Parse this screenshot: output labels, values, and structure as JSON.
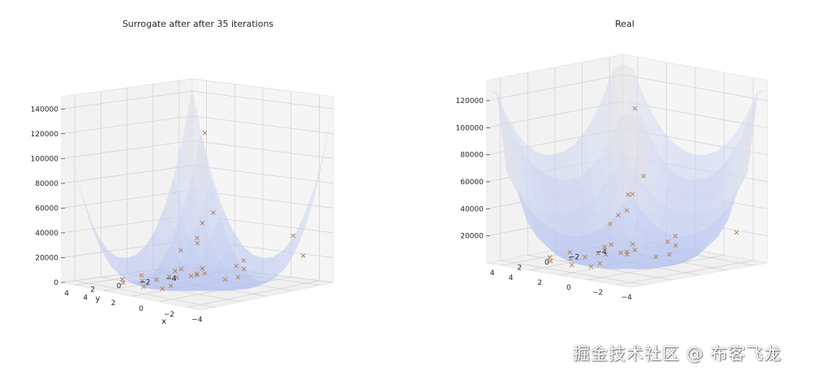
{
  "watermark": "掘金技术社区 @ 布客飞龙",
  "chart_data": [
    {
      "type": "surface3d",
      "title": "Surrogate after after 35 iterations",
      "xlabel": "x",
      "ylabel": "y",
      "zlabel": "",
      "xlim": [
        -5,
        5
      ],
      "ylim": [
        -5,
        5
      ],
      "zlim": [
        0,
        150000
      ],
      "x_ticks": [
        "−4",
        "−2",
        "0",
        "2",
        "4"
      ],
      "y_ticks": [
        "−4",
        "−2",
        "0",
        "2",
        "4"
      ],
      "z_ticks": [
        "0",
        "20000",
        "40000",
        "60000",
        "80000",
        "100000",
        "120000",
        "140000"
      ],
      "grid": true,
      "colormap": [
        "#b0bff0",
        "#d4dbf0",
        "#e6e0dc"
      ],
      "marker_color": "#b5835a",
      "samples": [
        {
          "x": -4.5,
          "y": 4.2,
          "z": 140000
        },
        {
          "x": 3.9,
          "y": -4.2,
          "z": 20000
        },
        {
          "x": -3.5,
          "y": 2.5,
          "z": 70000
        },
        {
          "x": -3.2,
          "y": 3.0,
          "z": 62000
        },
        {
          "x": -3.0,
          "y": 3.2,
          "z": 50000
        },
        {
          "x": -2.4,
          "y": 3.8,
          "z": 40000
        },
        {
          "x": -2.8,
          "y": -4.3,
          "z": 36000
        },
        {
          "x": -3.8,
          "y": -4.0,
          "z": 22000
        },
        {
          "x": -1.0,
          "y": 0.5,
          "z": 12000
        },
        {
          "x": -0.5,
          "y": 1.0,
          "z": 10000
        },
        {
          "x": 0.0,
          "y": 0.0,
          "z": 9000
        },
        {
          "x": 0.5,
          "y": -0.5,
          "z": 6000
        },
        {
          "x": 1.0,
          "y": 0.5,
          "z": 5000
        },
        {
          "x": 1.5,
          "y": 1.5,
          "z": 4000
        },
        {
          "x": 2.0,
          "y": 0.0,
          "z": 3000
        },
        {
          "x": 2.5,
          "y": -1.0,
          "z": 5000
        },
        {
          "x": -1.5,
          "y": -1.5,
          "z": 6000
        },
        {
          "x": -2.0,
          "y": 0.0,
          "z": 8000
        },
        {
          "x": 1.0,
          "y": 3.0,
          "z": 2000
        },
        {
          "x": 2.0,
          "y": 3.5,
          "z": 4000
        },
        {
          "x": 3.0,
          "y": 2.5,
          "z": 3000
        },
        {
          "x": -0.5,
          "y": -3.0,
          "z": 15000
        },
        {
          "x": -1.0,
          "y": -2.5,
          "z": 10000
        },
        {
          "x": 0.5,
          "y": -3.5,
          "z": 8000
        },
        {
          "x": 1.5,
          "y": -2.0,
          "z": 7000
        },
        {
          "x": 2.5,
          "y": 1.5,
          "z": 1000
        },
        {
          "x": 3.5,
          "y": 0.5,
          "z": 2000
        },
        {
          "x": 3.0,
          "y": -2.0,
          "z": 4000
        },
        {
          "x": 0.0,
          "y": 2.0,
          "z": 3000
        },
        {
          "x": -0.8,
          "y": 3.5,
          "z": 5000
        }
      ]
    },
    {
      "type": "surface3d",
      "title": "Real",
      "xlabel": "",
      "ylabel": "",
      "zlabel": "",
      "xlim": [
        -5,
        5
      ],
      "ylim": [
        -5,
        5
      ],
      "zlim": [
        0,
        135000
      ],
      "x_ticks": [
        "−4",
        "−2",
        "0",
        "2",
        "4"
      ],
      "y_ticks": [
        "−4",
        "−2",
        "0",
        "2",
        "4"
      ],
      "z_ticks": [
        "20000",
        "40000",
        "60000",
        "80000",
        "100000",
        "120000"
      ],
      "grid": true,
      "colormap": [
        "#b0bff0",
        "#d4dbf0",
        "#e6e0dc"
      ],
      "marker_color": "#b5835a",
      "samples": [
        {
          "x": -4.5,
          "y": 4.2,
          "z": 130000
        },
        {
          "x": 3.9,
          "y": -4.2,
          "z": 35000
        },
        {
          "x": 4.2,
          "y": -3.8,
          "z": 20000
        },
        {
          "x": -3.5,
          "y": 2.5,
          "z": 75000
        },
        {
          "x": -3.2,
          "y": 3.0,
          "z": 62000
        },
        {
          "x": -3.0,
          "y": 3.2,
          "z": 50000
        },
        {
          "x": -2.4,
          "y": 3.8,
          "z": 40000
        },
        {
          "x": -3.8,
          "y": -4.0,
          "z": 22000
        },
        {
          "x": -1.0,
          "y": 0.5,
          "z": 12000
        },
        {
          "x": -0.5,
          "y": 1.0,
          "z": 10000
        },
        {
          "x": 0.0,
          "y": 0.0,
          "z": 6000
        },
        {
          "x": 0.5,
          "y": -0.5,
          "z": 6000
        },
        {
          "x": 1.0,
          "y": 0.5,
          "z": 5000
        },
        {
          "x": 1.5,
          "y": 1.5,
          "z": 4000
        },
        {
          "x": 2.0,
          "y": 0.0,
          "z": 3000
        },
        {
          "x": 2.5,
          "y": -1.0,
          "z": 5000
        },
        {
          "x": -1.5,
          "y": -1.5,
          "z": 6000
        },
        {
          "x": -2.0,
          "y": 0.0,
          "z": 8000
        },
        {
          "x": 1.0,
          "y": 3.0,
          "z": 2000
        },
        {
          "x": 2.0,
          "y": 3.5,
          "z": 4000
        },
        {
          "x": 3.0,
          "y": 2.5,
          "z": 3000
        },
        {
          "x": -0.5,
          "y": -3.0,
          "z": 15000
        },
        {
          "x": -1.0,
          "y": -2.5,
          "z": 10000
        },
        {
          "x": 0.5,
          "y": -3.5,
          "z": 8000
        },
        {
          "x": 1.5,
          "y": -2.0,
          "z": 7000
        },
        {
          "x": 2.5,
          "y": 1.5,
          "z": 1000
        },
        {
          "x": 3.5,
          "y": 0.5,
          "z": 2000
        },
        {
          "x": 3.0,
          "y": -2.0,
          "z": 4000
        },
        {
          "x": 0.0,
          "y": 2.0,
          "z": 3000
        },
        {
          "x": -0.8,
          "y": 3.5,
          "z": 5000
        }
      ]
    }
  ]
}
